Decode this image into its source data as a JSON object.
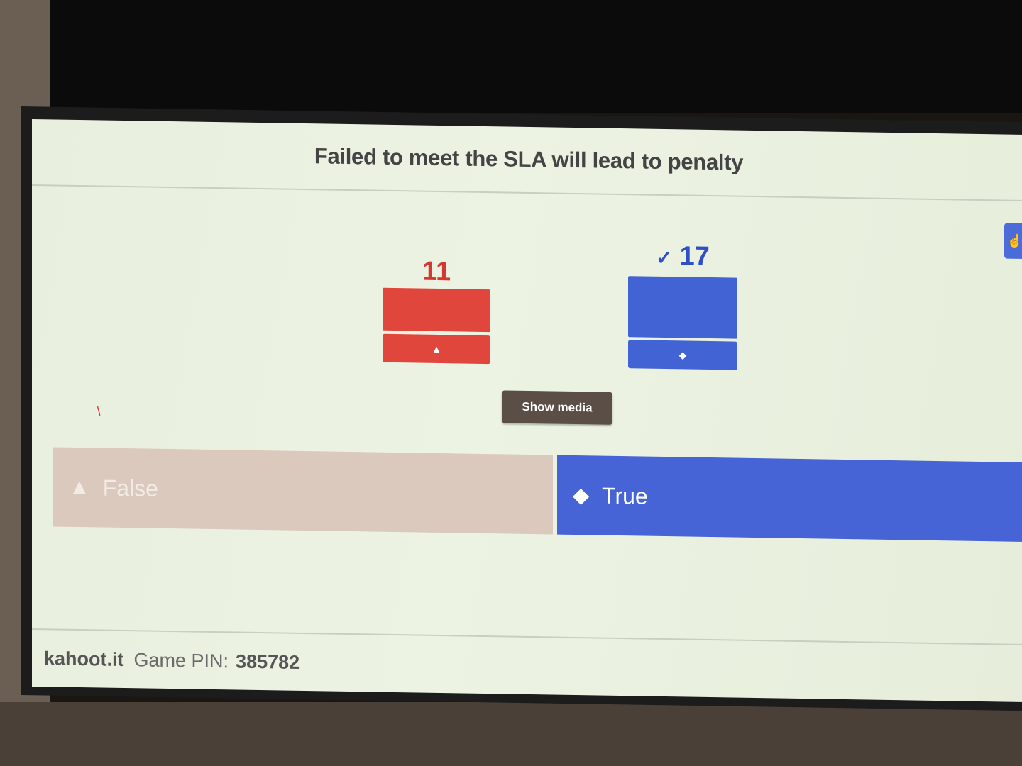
{
  "question": {
    "text": "Failed to meet the SLA will lead to penalty"
  },
  "results": {
    "bars": [
      {
        "answer": "False",
        "count": "11",
        "shape": "triangle",
        "correct": false,
        "color": "#e1463c"
      },
      {
        "answer": "True",
        "count": "17",
        "shape": "diamond",
        "correct": true,
        "color": "#4263d4"
      }
    ],
    "correct_mark": "✓"
  },
  "controls": {
    "show_media_label": "Show media"
  },
  "answers": {
    "false_label": "False",
    "true_label": "True"
  },
  "footer": {
    "brand": "kahoot.it",
    "pin_label": "Game PIN:",
    "pin_value": "385782"
  },
  "icons": {
    "triangle": "▲",
    "diamond": "◆"
  }
}
